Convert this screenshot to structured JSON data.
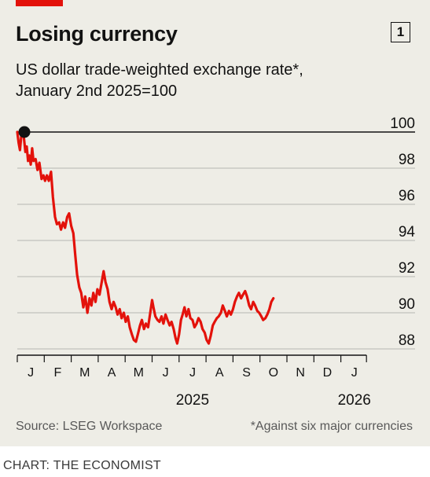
{
  "header": {
    "title": "Losing currency",
    "chart_number": "1",
    "subtitle_line1": "US dollar trade-weighted exchange rate*,",
    "subtitle_line2": "January 2nd 2025=100"
  },
  "footer": {
    "source": "Source: LSEG Workspace",
    "note": "*Against six major currencies",
    "credit": "CHART: THE ECONOMIST"
  },
  "colors": {
    "line": "#e3120b",
    "background": "#eeede6",
    "grid": "#b7b7b1",
    "accent": "#e3120b"
  },
  "chart_data": {
    "type": "line",
    "title": "Losing currency",
    "subtitle": "US dollar trade-weighted exchange rate*, January 2nd 2025=100",
    "xlabel": "",
    "ylabel": "",
    "x_unit": "months since start of 2025",
    "month_ticks": [
      "J",
      "F",
      "M",
      "A",
      "M",
      "J",
      "J",
      "A",
      "S",
      "O",
      "N",
      "D",
      "J"
    ],
    "year_labels": [
      {
        "label": "2025",
        "at": 6
      },
      {
        "label": "2026",
        "at": 12
      }
    ],
    "ylim": [
      87.5,
      100.5
    ],
    "yticks": [
      88,
      90,
      92,
      94,
      96,
      98,
      100
    ],
    "grid": true,
    "baseline": 100,
    "series": [
      {
        "name": "",
        "marker_at_start": true,
        "points": [
          [
            0.0,
            100.0
          ],
          [
            0.05,
            99.4
          ],
          [
            0.1,
            99.0
          ],
          [
            0.15,
            99.8
          ],
          [
            0.2,
            100.2
          ],
          [
            0.25,
            99.6
          ],
          [
            0.3,
            98.9
          ],
          [
            0.35,
            99.2
          ],
          [
            0.4,
            98.4
          ],
          [
            0.45,
            98.7
          ],
          [
            0.5,
            98.2
          ],
          [
            0.55,
            99.1
          ],
          [
            0.6,
            98.4
          ],
          [
            0.68,
            98.5
          ],
          [
            0.75,
            97.9
          ],
          [
            0.82,
            98.3
          ],
          [
            0.9,
            97.4
          ],
          [
            0.97,
            97.6
          ],
          [
            1.03,
            97.3
          ],
          [
            1.1,
            97.6
          ],
          [
            1.17,
            97.3
          ],
          [
            1.25,
            97.8
          ],
          [
            1.32,
            96.4
          ],
          [
            1.4,
            95.3
          ],
          [
            1.47,
            94.9
          ],
          [
            1.55,
            95.0
          ],
          [
            1.62,
            94.6
          ],
          [
            1.7,
            95.0
          ],
          [
            1.77,
            94.7
          ],
          [
            1.85,
            95.3
          ],
          [
            1.92,
            95.5
          ],
          [
            2.0,
            94.8
          ],
          [
            2.08,
            94.4
          ],
          [
            2.15,
            93.2
          ],
          [
            2.22,
            92.1
          ],
          [
            2.3,
            91.4
          ],
          [
            2.37,
            91.1
          ],
          [
            2.45,
            90.3
          ],
          [
            2.52,
            90.9
          ],
          [
            2.6,
            90.0
          ],
          [
            2.68,
            90.8
          ],
          [
            2.75,
            90.4
          ],
          [
            2.82,
            91.1
          ],
          [
            2.9,
            90.6
          ],
          [
            2.97,
            91.3
          ],
          [
            3.05,
            91.0
          ],
          [
            3.12,
            91.6
          ],
          [
            3.2,
            92.3
          ],
          [
            3.27,
            91.7
          ],
          [
            3.35,
            91.3
          ],
          [
            3.42,
            90.6
          ],
          [
            3.5,
            90.2
          ],
          [
            3.57,
            90.6
          ],
          [
            3.65,
            90.3
          ],
          [
            3.72,
            89.9
          ],
          [
            3.8,
            90.2
          ],
          [
            3.87,
            89.7
          ],
          [
            3.95,
            90.0
          ],
          [
            4.02,
            89.5
          ],
          [
            4.1,
            89.8
          ],
          [
            4.17,
            89.2
          ],
          [
            4.25,
            88.8
          ],
          [
            4.32,
            88.5
          ],
          [
            4.4,
            88.4
          ],
          [
            4.47,
            88.8
          ],
          [
            4.55,
            89.3
          ],
          [
            4.62,
            89.6
          ],
          [
            4.7,
            89.1
          ],
          [
            4.77,
            89.4
          ],
          [
            4.85,
            89.2
          ],
          [
            4.92,
            89.9
          ],
          [
            5.0,
            90.7
          ],
          [
            5.05,
            90.3
          ],
          [
            5.12,
            89.8
          ],
          [
            5.2,
            89.6
          ],
          [
            5.27,
            89.5
          ],
          [
            5.35,
            89.8
          ],
          [
            5.42,
            89.4
          ],
          [
            5.5,
            89.9
          ],
          [
            5.57,
            89.6
          ],
          [
            5.65,
            89.3
          ],
          [
            5.72,
            89.5
          ],
          [
            5.8,
            89.1
          ],
          [
            5.87,
            88.6
          ],
          [
            5.93,
            88.3
          ],
          [
            6.0,
            88.8
          ],
          [
            6.07,
            89.6
          ],
          [
            6.13,
            89.9
          ],
          [
            6.2,
            90.3
          ],
          [
            6.27,
            89.8
          ],
          [
            6.35,
            90.2
          ],
          [
            6.42,
            89.7
          ],
          [
            6.5,
            89.6
          ],
          [
            6.57,
            89.2
          ],
          [
            6.65,
            89.4
          ],
          [
            6.72,
            89.7
          ],
          [
            6.8,
            89.5
          ],
          [
            6.87,
            89.1
          ],
          [
            6.95,
            88.9
          ],
          [
            7.02,
            88.5
          ],
          [
            7.1,
            88.3
          ],
          [
            7.17,
            88.7
          ],
          [
            7.25,
            89.3
          ],
          [
            7.32,
            89.5
          ],
          [
            7.4,
            89.7
          ],
          [
            7.47,
            89.8
          ],
          [
            7.55,
            90.0
          ],
          [
            7.62,
            90.4
          ],
          [
            7.7,
            90.1
          ],
          [
            7.77,
            89.8
          ],
          [
            7.85,
            90.1
          ],
          [
            7.92,
            89.9
          ],
          [
            8.0,
            90.2
          ],
          [
            8.07,
            90.6
          ],
          [
            8.15,
            90.9
          ],
          [
            8.22,
            91.1
          ],
          [
            8.3,
            90.8
          ],
          [
            8.37,
            91.0
          ],
          [
            8.45,
            91.2
          ],
          [
            8.52,
            90.9
          ],
          [
            8.6,
            90.4
          ],
          [
            8.67,
            90.2
          ],
          [
            8.75,
            90.6
          ],
          [
            8.82,
            90.4
          ],
          [
            8.9,
            90.1
          ],
          [
            8.97,
            90.0
          ],
          [
            9.05,
            89.8
          ],
          [
            9.12,
            89.6
          ],
          [
            9.2,
            89.7
          ],
          [
            9.27,
            89.9
          ],
          [
            9.35,
            90.2
          ],
          [
            9.42,
            90.6
          ],
          [
            9.5,
            90.8
          ]
        ]
      }
    ]
  }
}
